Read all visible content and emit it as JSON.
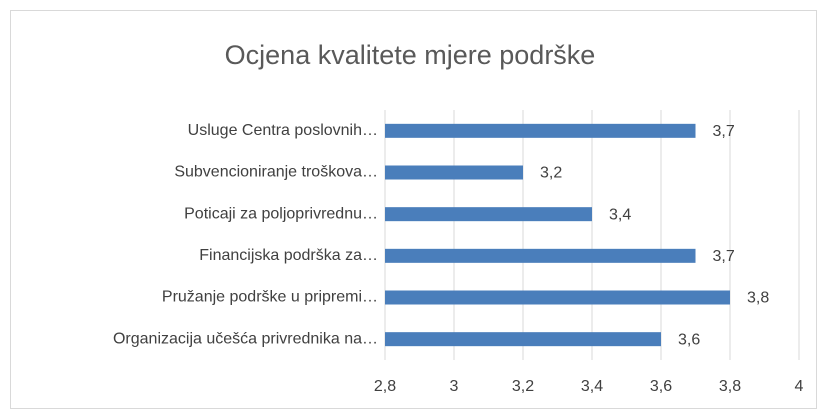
{
  "chart_data": {
    "type": "hbar",
    "title": "Ocjena kvalitete mjere podrške",
    "categories": [
      "Usluge Centra poslovnih…",
      "Subvencioniranje troškova…",
      "Poticaji za poljoprivrednu…",
      "Financijska podrška za…",
      "Pružanje podrške u pripremi…",
      "Organizacija učešća privrednika na…"
    ],
    "values": [
      3.7,
      3.2,
      3.4,
      3.7,
      3.8,
      3.6
    ],
    "value_labels": [
      "3,7",
      "3,2",
      "3,4",
      "3,7",
      "3,8",
      "3,6"
    ],
    "color": "#4a7ebb",
    "xlim": [
      2.8,
      4
    ],
    "xticks": [
      {
        "value": 2.8,
        "label": "2,8"
      },
      3,
      {
        "value": 3.2,
        "label": "3,2"
      },
      {
        "value": 3.4,
        "label": "3,4"
      },
      {
        "value": 3.6,
        "label": "3,6"
      },
      {
        "value": 3.8,
        "label": "3,8"
      },
      4
    ],
    "grid": true
  }
}
